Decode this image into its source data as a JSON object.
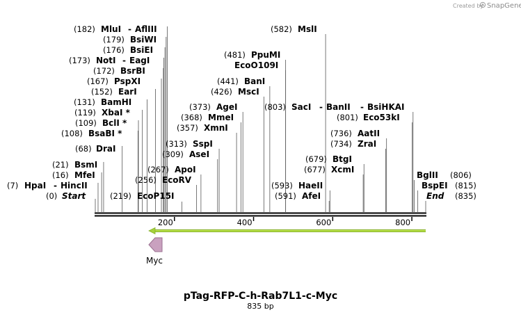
{
  "branding": {
    "created_by": "Created by",
    "brand_name": "SnapGene"
  },
  "map": {
    "title": "pTag-RFP-C-h-Rab7L1-c-Myc",
    "length_label": "835 bp",
    "length": 835,
    "ticks": [
      {
        "pos": 200,
        "label": "200"
      },
      {
        "pos": 400,
        "label": "400"
      },
      {
        "pos": 600,
        "label": "600"
      },
      {
        "pos": 800,
        "label": "800"
      }
    ]
  },
  "features": [
    {
      "name": "Myc",
      "start": 149,
      "end": 178,
      "direction": "reverse",
      "color": "#c9a1bf"
    },
    {
      "name": "",
      "start": 140,
      "end": 835,
      "direction": "reverse",
      "color": "#a6d23c"
    }
  ],
  "sites": [
    {
      "id": "hpai",
      "pos_label": "(7)",
      "name": "HpaI",
      "cut": 7
    },
    {
      "id": "hincii",
      "name": "HincII",
      "cut": 7
    },
    {
      "id": "start",
      "pos_label": "(0)",
      "name": "Start",
      "cut": 0,
      "italic": true
    },
    {
      "id": "mfei",
      "pos_label": "(16)",
      "name": "MfeI",
      "cut": 16
    },
    {
      "id": "bsmi",
      "pos_label": "(21)",
      "name": "BsmI",
      "cut": 21
    },
    {
      "id": "drai",
      "pos_label": "(68)",
      "name": "DraI",
      "cut": 68
    },
    {
      "id": "bsabi",
      "pos_label": "(108)",
      "name": "BsaBI *",
      "cut": 108
    },
    {
      "id": "bcli",
      "pos_label": "(109)",
      "name": "BclI *",
      "cut": 109
    },
    {
      "id": "xbai",
      "pos_label": "(119)",
      "name": "XbaI *",
      "cut": 119
    },
    {
      "id": "bamhi",
      "pos_label": "(131)",
      "name": "BamHI",
      "cut": 131
    },
    {
      "id": "eari",
      "pos_label": "(152)",
      "name": "EarI",
      "cut": 152
    },
    {
      "id": "pspxi",
      "pos_label": "(167)",
      "name": "PspXI",
      "cut": 167
    },
    {
      "id": "bsrbi",
      "pos_label": "(172)",
      "name": "BsrBI",
      "cut": 172
    },
    {
      "id": "noti",
      "pos_label": "(173)",
      "name": "NotI",
      "cut": 173
    },
    {
      "id": "eagi",
      "name": "EagI",
      "cut": 173
    },
    {
      "id": "bsiei",
      "pos_label": "(176)",
      "name": "BsiEI",
      "cut": 176
    },
    {
      "id": "bsiwi",
      "pos_label": "(179)",
      "name": "BsiWI",
      "cut": 179
    },
    {
      "id": "mlui",
      "pos_label": "(182)",
      "name": "MluI",
      "cut": 182
    },
    {
      "id": "aflIII",
      "name": "AflIII",
      "cut": 182
    },
    {
      "id": "ecop15i",
      "pos_label": "(219)",
      "name": "EcoP15I",
      "cut": 219
    },
    {
      "id": "ecorv",
      "pos_label": "(256)",
      "name": "EcoRV",
      "cut": 256
    },
    {
      "id": "apoi",
      "pos_label": "(267)",
      "name": "ApoI",
      "cut": 267
    },
    {
      "id": "asei",
      "pos_label": "(309)",
      "name": "AseI",
      "cut": 309
    },
    {
      "id": "sspi",
      "pos_label": "(313)",
      "name": "SspI",
      "cut": 313
    },
    {
      "id": "xmni",
      "pos_label": "(357)",
      "name": "XmnI",
      "cut": 357
    },
    {
      "id": "mmei",
      "pos_label": "(368)",
      "name": "MmeI",
      "cut": 368
    },
    {
      "id": "agei",
      "pos_label": "(373)",
      "name": "AgeI",
      "cut": 373
    },
    {
      "id": "msci",
      "pos_label": "(426)",
      "name": "MscI",
      "cut": 426
    },
    {
      "id": "bani",
      "pos_label": "(441)",
      "name": "BanI",
      "cut": 441
    },
    {
      "id": "eco0109i",
      "name": "EcoO109I",
      "cut": 481
    },
    {
      "id": "ppumi",
      "pos_label": "(481)",
      "name": "PpuMI",
      "cut": 481
    },
    {
      "id": "msli",
      "pos_label": "(582)",
      "name": "MslI",
      "cut": 582
    },
    {
      "id": "saci",
      "pos_label": "(803)",
      "name": "SacI",
      "cut": 803
    },
    {
      "id": "banii",
      "name": "BanII",
      "cut": 803
    },
    {
      "id": "bsihkai",
      "name": "BsiHKAI",
      "cut": 803
    },
    {
      "id": "eco53ki",
      "pos_label": "(801)",
      "name": "Eco53kI",
      "cut": 801
    },
    {
      "id": "aatii",
      "pos_label": "(736)",
      "name": "AatII",
      "cut": 736
    },
    {
      "id": "zrai",
      "pos_label": "(734)",
      "name": "ZraI",
      "cut": 734
    },
    {
      "id": "btgi",
      "pos_label": "(679)",
      "name": "BtgI",
      "cut": 679
    },
    {
      "id": "xcmi",
      "pos_label": "(677)",
      "name": "XcmI",
      "cut": 677
    },
    {
      "id": "haeii",
      "pos_label": "(593)",
      "name": "HaeII",
      "cut": 593
    },
    {
      "id": "afei",
      "pos_label": "(591)",
      "name": "AfeI",
      "cut": 591
    },
    {
      "id": "bglii",
      "pos_label": "(806)",
      "name": "BglII",
      "cut": 806
    },
    {
      "id": "bspei",
      "pos_label": "(815)",
      "name": "BspEI",
      "cut": 815
    },
    {
      "id": "end",
      "pos_label": "(835)",
      "name": "End",
      "cut": 835,
      "italic": true
    }
  ]
}
